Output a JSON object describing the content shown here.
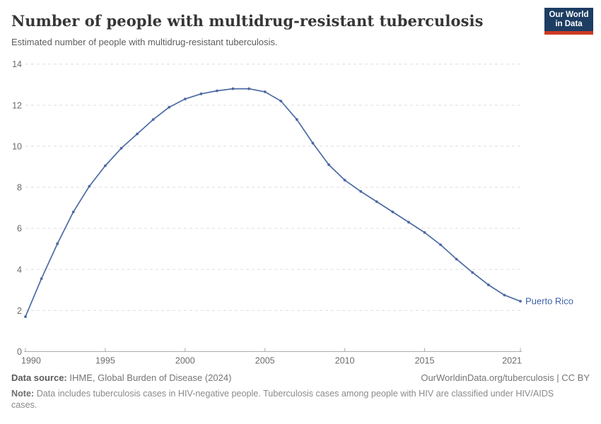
{
  "header": {
    "title": "Number of people with multidrug-resistant tuberculosis",
    "subtitle": "Estimated number of people with multidrug-resistant tuberculosis."
  },
  "logo": {
    "line1": "Our World",
    "line2": "in Data",
    "bg_color": "#1d3d63",
    "accent_color": "#cc3b21"
  },
  "chart_data": {
    "type": "line",
    "title": "Number of people with multidrug-resistant tuberculosis",
    "x": [
      1990,
      1991,
      1992,
      1993,
      1994,
      1995,
      1996,
      1997,
      1998,
      1999,
      2000,
      2001,
      2002,
      2003,
      2004,
      2005,
      2006,
      2007,
      2008,
      2009,
      2010,
      2011,
      2012,
      2013,
      2014,
      2015,
      2016,
      2017,
      2018,
      2019,
      2020,
      2021
    ],
    "series": [
      {
        "name": "Puerto Rico",
        "color": "#4c6aa4",
        "label_color": "#3d63a8",
        "values": [
          1.7,
          3.55,
          5.25,
          6.8,
          8.05,
          9.05,
          9.9,
          10.6,
          11.3,
          11.9,
          12.3,
          12.55,
          12.7,
          12.8,
          12.8,
          12.65,
          12.2,
          11.3,
          10.15,
          9.1,
          8.35,
          7.8,
          7.3,
          6.8,
          6.3,
          5.8,
          5.2,
          4.5,
          3.85,
          3.25,
          2.75,
          2.45
        ]
      }
    ],
    "xlabel": "",
    "ylabel": "",
    "ylim": [
      0,
      14
    ],
    "yticks": [
      0,
      2,
      4,
      6,
      8,
      10,
      12,
      14
    ],
    "xticks": [
      1990,
      1995,
      2000,
      2005,
      2010,
      2015,
      2021
    ],
    "grid": "horizontal-dashed",
    "legend": "end-of-line-label",
    "axis_color": "#ababab",
    "grid_color": "#dedede",
    "tick_label_color": "#6c6c6c"
  },
  "footer": {
    "source_label": "Data source:",
    "source_value": "IHME, Global Burden of Disease (2024)",
    "citation": "OurWorldinData.org/tuberculosis | CC BY",
    "note_label": "Note:",
    "note_value": "Data includes tuberculosis cases in HIV-negative people. Tuberculosis cases among people with HIV are classified under HIV/AIDS cases."
  }
}
